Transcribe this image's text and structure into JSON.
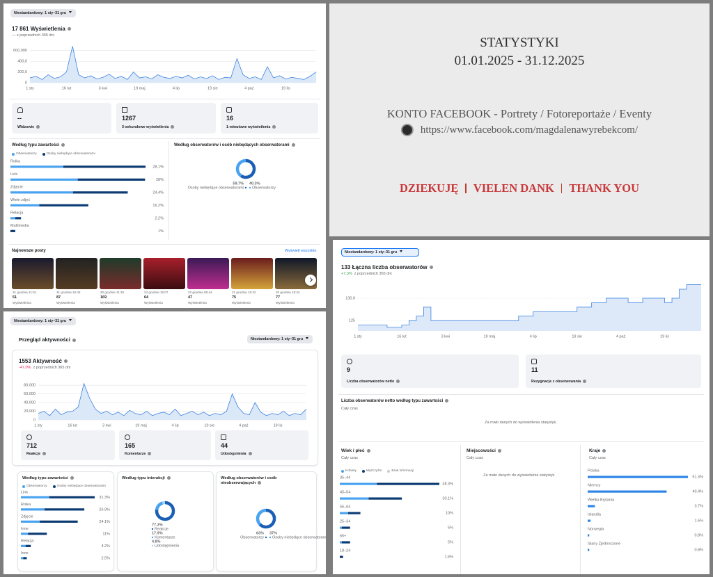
{
  "views": {
    "filter": "Niestandardowy: 1 sty–31 gru",
    "metric": "17 861 Wyświetlenia",
    "change": "— z poprzednich 365 dni",
    "cards": [
      {
        "value": "--",
        "label": "Widzowie"
      },
      {
        "value": 1267,
        "label": "3-sekundowe wyświetlenia"
      },
      {
        "value": 16,
        "label": "1-minutowe wyświetlenia"
      }
    ],
    "content_title": "Według typu zawartości",
    "audience_title": "Według obserwatorów i osób niebędących obserwatorami",
    "posts_title": "Najnowsze posty",
    "see_all": "Wyświetl wszystko",
    "posts": [
      {
        "date": "31 grudnia 21:51",
        "value": 51,
        "label": "Wyświetlenia"
      },
      {
        "date": "31 grudnia 16:43",
        "value": 87,
        "label": "Wyświetlenia"
      },
      {
        "date": "30 grudnia 11:25",
        "value": 169,
        "label": "Wyświetlenia"
      },
      {
        "date": "24 grudnia 16:07",
        "value": 64,
        "label": "Wyświetlenia"
      },
      {
        "date": "23 grudnia 09:44",
        "value": 47,
        "label": "Wyświetlenia"
      },
      {
        "date": "21 grudnia 19:42",
        "value": 75,
        "label": "Wyświetlenia"
      },
      {
        "date": "20 grudnia 18:34",
        "value": 77,
        "label": "Wyświetlenia"
      }
    ]
  },
  "cover": {
    "title": "STATYSTYKI",
    "dates": "01.01.2025 - 31.12.2025",
    "account": "KONTO FACEBOOK - Portrety / Fotoreportaże / Eventy",
    "url": "https://www.facebook.com/magdalenawyrebekcom/",
    "thanks": [
      "DZIEKUJĘ",
      "VIELEN DANK",
      "THANK YOU"
    ]
  },
  "activity": {
    "filter": "Niestandardowy: 1 sty–31 gru",
    "title": "Przegląd aktywności",
    "filter2": "Niestandardowy: 1 sty–31 gru",
    "metric": "1553 Aktywność",
    "change": "-47,0%",
    "change_note": "z poprzednich 365 dni",
    "cards": [
      {
        "value": 712,
        "label": "Reakcje"
      },
      {
        "value": 165,
        "label": "Komentarze"
      },
      {
        "value": 44,
        "label": "Udostępnienia"
      }
    ],
    "content_title": "Według typu zawartości",
    "interaction_title": "Według typu interakcji",
    "audience_title": "Według obserwatorów i osób nieobserwujących"
  },
  "followers": {
    "filter": "Niestandardowy: 1 sty–31 gru",
    "metric": "133 Łączna liczba obserwatorów",
    "change": "+7,3%",
    "change_note": "z poprzednich 365 dni",
    "cards": [
      {
        "value": 9,
        "label": "Liczba obserwatorów netto"
      },
      {
        "value": 11,
        "label": "Rezygnacje z obserwowania"
      }
    ],
    "net_title": "Liczba obserwatorów netto według typu zawartości",
    "net_period": "Cały czas",
    "net_empty": "Za mało danych do wyświetlenia statystyk.",
    "age_title": "Wiek i płeć",
    "age_period": "Cały czas",
    "city_title": "Miejscowości",
    "city_period": "Cały czas",
    "city_empty": "Za mało danych do wyświetlenia statystyk.",
    "country_title": "Kraje",
    "country_period": "Cały czas"
  },
  "chart_data": [
    {
      "type": "line",
      "color": "#3b82e0",
      "fill_color": "#dbe8f8",
      "grid": true,
      "categories": [
        "1 sty",
        null,
        null,
        null,
        null,
        null,
        "16 lut",
        null,
        null,
        null,
        null,
        null,
        "3 kwi",
        null,
        null,
        null,
        null,
        null,
        "19 maj",
        null,
        null,
        null,
        null,
        null,
        "4 lip",
        null,
        null,
        null,
        null,
        null,
        "19 sie",
        null,
        null,
        null,
        null,
        null,
        "4 paź",
        null,
        null,
        null,
        null,
        null,
        "19 lis",
        null,
        null,
        null,
        null,
        null
      ],
      "values": [
        90000,
        120000,
        60000,
        150000,
        80000,
        110000,
        200000,
        680000,
        150000,
        90000,
        130000,
        70000,
        100000,
        160000,
        80000,
        120000,
        60000,
        200000,
        90000,
        110000,
        70000,
        150000,
        100000,
        80000,
        120000,
        90000,
        140000,
        70000,
        110000,
        80000,
        130000,
        60000,
        100000,
        90000,
        450000,
        150000,
        80000,
        110000,
        60000,
        300000,
        90000,
        130000,
        70000,
        100000,
        80000,
        60000,
        120000,
        200000
      ],
      "ylim": [
        0,
        700000
      ],
      "yticks": [
        0,
        {
          "value": 200000,
          "label": "200,0"
        },
        {
          "value": 400000,
          "label": "400,0"
        },
        {
          "value": 600000,
          "label": "600,000"
        }
      ]
    },
    {
      "type": "hbar",
      "categories": [
        "Rolka",
        "Link",
        "Zdjęcie",
        "Wiele zdjęć",
        "Relacja",
        "Multimedia"
      ],
      "values": [
        28.1,
        28,
        24.4,
        16.2,
        2.2,
        1
      ],
      "value_labels": [
        "28.1%",
        "28%",
        "24.4%",
        "16.2%",
        "2.2%",
        "1%"
      ],
      "series": [
        {
          "name": "Obserwatorzy",
          "color": "#4aa3f0",
          "values": [
            11,
            14,
            13,
            6,
            1,
            0
          ]
        },
        {
          "name": "Osoby niebędące obserwatorami",
          "color": "#0d3c73",
          "values": [
            17.1,
            14,
            11.4,
            10.2,
            1.2,
            1
          ]
        }
      ]
    },
    {
      "type": "donut",
      "categories": [
        "Osoby niebędące obserwatorami",
        "Obserwatorzy"
      ],
      "values": [
        59.7,
        40.3
      ],
      "value_labels": [
        "59.7%",
        "40.3%"
      ],
      "colors": [
        "#1b5fb5",
        "#4aa3f0"
      ]
    },
    {
      "type": "line",
      "color": "#3b82e0",
      "fill_color": "#dbe8f8",
      "grid": true,
      "categories": [
        "1 sty",
        null,
        null,
        null,
        null,
        null,
        "16 lut",
        null,
        null,
        null,
        null,
        null,
        "3 kwi",
        null,
        null,
        null,
        null,
        null,
        "19 maj",
        null,
        null,
        null,
        null,
        null,
        "4 lip",
        null,
        null,
        null,
        null,
        null,
        "19 sie",
        null,
        null,
        null,
        null,
        null,
        "4 paź",
        null,
        null,
        null,
        null,
        null,
        "19 lis",
        null,
        null,
        null,
        null,
        null
      ],
      "values": [
        15000,
        20000,
        10000,
        25000,
        12000,
        18000,
        20000,
        30000,
        84000,
        50000,
        25000,
        15000,
        20000,
        12000,
        18000,
        10000,
        22000,
        15000,
        12000,
        20000,
        10000,
        15000,
        18000,
        12000,
        25000,
        10000,
        15000,
        20000,
        12000,
        18000,
        10000,
        15000,
        12000,
        20000,
        60000,
        30000,
        15000,
        12000,
        40000,
        18000,
        10000,
        15000,
        12000,
        20000,
        10000,
        15000,
        12000,
        25000
      ],
      "ylim": [
        0,
        90000
      ],
      "yticks": [
        0,
        {
          "value": 20000,
          "label": "20,000"
        },
        {
          "value": 40000,
          "label": "40,000"
        },
        {
          "value": 60000,
          "label": "60,000"
        },
        {
          "value": 80000,
          "label": "80,000"
        }
      ]
    },
    {
      "type": "hbar",
      "categories": [
        "Link",
        "Rolka",
        "Zdjęcie",
        "Inne",
        "Relacja",
        "Inne"
      ],
      "values": [
        31.3,
        26.9,
        24.1,
        11,
        4.2,
        2.5
      ],
      "value_labels": [
        "31.3%",
        "26.9%",
        "24.1%",
        "11%",
        "4.2%",
        "2.5%"
      ],
      "series": [
        {
          "name": "Obserwatorzy",
          "color": "#4aa3f0",
          "values": [
            12,
            10,
            8,
            3,
            2,
            1
          ]
        },
        {
          "name": "Osoby niebędące obserwatorami",
          "color": "#0d3c73",
          "values": [
            19.3,
            16.9,
            16.1,
            8,
            2.2,
            1.5
          ]
        }
      ]
    },
    {
      "type": "donut",
      "categories": [
        "Reakcje",
        "Komentarze",
        "Udostępnienia"
      ],
      "values": [
        77.3,
        17.9,
        4.8
      ],
      "value_labels": [
        "77.3%",
        "17.9%",
        "4.8%"
      ],
      "colors": [
        "#1b5fb5",
        "#4aa3f0",
        "#a9d1f7"
      ]
    },
    {
      "type": "donut",
      "categories": [
        "Obserwatorzy",
        "Osoby niebędące obserwatorami"
      ],
      "values": [
        63,
        37
      ],
      "value_labels": [
        "63%",
        "37%"
      ],
      "colors": [
        "#1b5fb5",
        "#4aa3f0"
      ]
    },
    {
      "type": "line",
      "step": true,
      "color": "#3b82e0",
      "fill_color": "#dde9f9",
      "grid": true,
      "categories": [
        "1 sty",
        null,
        null,
        null,
        null,
        null,
        "16 lut",
        null,
        null,
        null,
        null,
        null,
        "3 kwi",
        null,
        null,
        null,
        null,
        null,
        "19 maj",
        null,
        null,
        null,
        null,
        null,
        "4 lip",
        null,
        null,
        null,
        null,
        null,
        "19 sie",
        null,
        null,
        null,
        null,
        null,
        "4 paź",
        null,
        null,
        null,
        null,
        null,
        "19 lis",
        null,
        null,
        null,
        null,
        null
      ],
      "values": [
        124,
        124,
        124,
        124,
        123.5,
        123.5,
        124,
        125,
        126,
        128,
        125,
        125,
        125,
        125,
        125,
        125,
        125,
        125,
        125,
        125,
        125,
        125,
        126,
        126,
        127,
        127,
        127,
        127,
        127,
        127,
        128,
        128,
        129,
        129,
        130,
        130,
        130,
        129,
        129,
        130,
        130,
        130,
        129,
        130,
        132,
        133,
        133,
        133
      ],
      "ylim": [
        122.7,
        133.4
      ],
      "yticks": [
        125,
        {
          "value": 130,
          "label": "130.0"
        }
      ]
    },
    {
      "type": "hbar",
      "categories": [
        "35–44",
        "45–54",
        "55–64",
        "25–34",
        "65+",
        "18–24"
      ],
      "values": [
        48.3,
        30.1,
        10,
        5,
        5,
        1.6
      ],
      "value_labels": [
        "48.3%",
        "30.1%",
        "10%",
        "5%",
        "5%",
        "1.6%"
      ],
      "series": [
        {
          "name": "Kobiety",
          "color": "#4aa3f0",
          "values": [
            18,
            14,
            4,
            1,
            1,
            0
          ]
        },
        {
          "name": "Mężczyźni",
          "color": "#0d3c73",
          "values": [
            30.3,
            16.1,
            6,
            4,
            4,
            1.6
          ]
        },
        {
          "name": "Brak informacji",
          "color": "#c8ccd2",
          "values": [
            0,
            0,
            0,
            0,
            0,
            0
          ]
        }
      ]
    },
    {
      "type": "hbar",
      "color": "#2f86e6",
      "categories": [
        "Polska",
        "Niemcy",
        "Wielka Brytania",
        "Islandia",
        "Norwegia",
        "Stany Zjednoczone"
      ],
      "values": [
        51.3,
        40.4,
        3.7,
        1.5,
        0.8,
        0.8
      ],
      "value_labels": [
        "51.3%",
        "40.4%",
        "3.7%",
        "1.5%",
        "0.8%",
        "0.8%"
      ]
    }
  ]
}
